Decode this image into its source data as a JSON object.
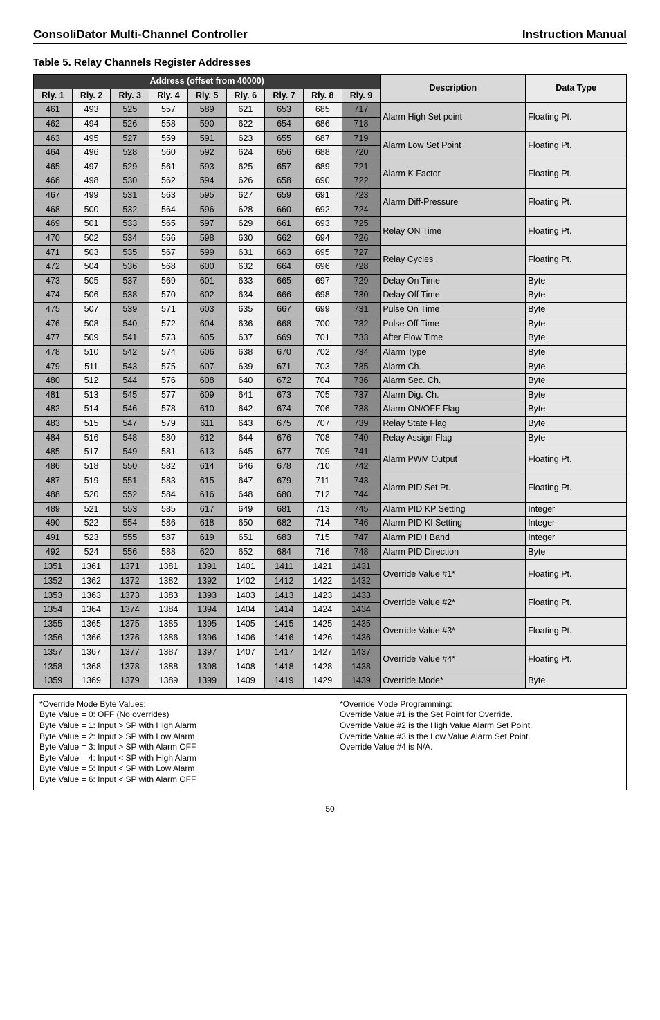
{
  "header": {
    "left": "ConsoliDator Multi-Channel Controller",
    "right": "Instruction Manual"
  },
  "table_title": "Table 5. Relay Channels Register Addresses",
  "address_header": "Address (offset from 40000)",
  "col_headers": [
    "Rly. 1",
    "Rly. 2",
    "Rly. 3",
    "Rly. 4",
    "Rly. 5",
    "Rly. 6",
    "Rly. 7",
    "Rly. 8",
    "Rly. 9",
    "Description",
    "Data Type"
  ],
  "col_styling": {
    "rly_fill_pattern": [
      "odd-col",
      "even-col",
      "odd-col",
      "even-col",
      "odd-col",
      "even-col",
      "odd-col",
      "even-col",
      "rly9-col"
    ],
    "desc_class": "desc-cell",
    "dtype_class": "dtype-cell",
    "address_header_bg": "#3b3b3b",
    "address_header_fg": "#ffffff",
    "th_bg": "#d9d9d9",
    "odd_col_bg": "#b7b7b7",
    "even_col_bg": "#f0f0f0",
    "rly9_bg": "#8a8a8a",
    "desc_bg": "#d2d2d2",
    "dtype_bg": "#e6e6e6",
    "border_color": "#000000",
    "font_size_pt": 9
  },
  "rows": [
    {
      "r": [
        461,
        493,
        525,
        557,
        589,
        621,
        653,
        685,
        717
      ],
      "desc": "Alarm High Set point",
      "dtype": "Floating Pt.",
      "span": 2
    },
    {
      "r": [
        462,
        494,
        526,
        558,
        590,
        622,
        654,
        686,
        718
      ]
    },
    {
      "r": [
        463,
        495,
        527,
        559,
        591,
        623,
        655,
        687,
        719
      ],
      "desc": "Alarm Low Set Point",
      "dtype": "Floating Pt.",
      "span": 2
    },
    {
      "r": [
        464,
        496,
        528,
        560,
        592,
        624,
        656,
        688,
        720
      ]
    },
    {
      "r": [
        465,
        497,
        529,
        561,
        593,
        625,
        657,
        689,
        721
      ],
      "desc": "Alarm K Factor",
      "dtype": "Floating Pt.",
      "span": 2
    },
    {
      "r": [
        466,
        498,
        530,
        562,
        594,
        626,
        658,
        690,
        722
      ]
    },
    {
      "r": [
        467,
        499,
        531,
        563,
        595,
        627,
        659,
        691,
        723
      ],
      "desc": "Alarm Diff-Pressure",
      "dtype": "Floating Pt.",
      "span": 2
    },
    {
      "r": [
        468,
        500,
        532,
        564,
        596,
        628,
        660,
        692,
        724
      ]
    },
    {
      "r": [
        469,
        501,
        533,
        565,
        597,
        629,
        661,
        693,
        725
      ],
      "desc": "Relay ON Time",
      "dtype": "Floating Pt.",
      "span": 2
    },
    {
      "r": [
        470,
        502,
        534,
        566,
        598,
        630,
        662,
        694,
        726
      ]
    },
    {
      "r": [
        471,
        503,
        535,
        567,
        599,
        631,
        663,
        695,
        727
      ],
      "desc": "Relay Cycles",
      "dtype": "Floating Pt.",
      "span": 2
    },
    {
      "r": [
        472,
        504,
        536,
        568,
        600,
        632,
        664,
        696,
        728
      ]
    },
    {
      "r": [
        473,
        505,
        537,
        569,
        601,
        633,
        665,
        697,
        729
      ],
      "desc": "Delay On Time",
      "dtype": "Byte",
      "span": 1
    },
    {
      "r": [
        474,
        506,
        538,
        570,
        602,
        634,
        666,
        698,
        730
      ],
      "desc": "Delay Off Time",
      "dtype": "Byte",
      "span": 1
    },
    {
      "r": [
        475,
        507,
        539,
        571,
        603,
        635,
        667,
        699,
        731
      ],
      "desc": "Pulse On Time",
      "dtype": "Byte",
      "span": 1
    },
    {
      "r": [
        476,
        508,
        540,
        572,
        604,
        636,
        668,
        700,
        732
      ],
      "desc": "Pulse Off Time",
      "dtype": "Byte",
      "span": 1
    },
    {
      "r": [
        477,
        509,
        541,
        573,
        605,
        637,
        669,
        701,
        733
      ],
      "desc": "After Flow Time",
      "dtype": "Byte",
      "span": 1
    },
    {
      "r": [
        478,
        510,
        542,
        574,
        606,
        638,
        670,
        702,
        734
      ],
      "desc": "Alarm Type",
      "dtype": "Byte",
      "span": 1
    },
    {
      "r": [
        479,
        511,
        543,
        575,
        607,
        639,
        671,
        703,
        735
      ],
      "desc": "Alarm Ch.",
      "dtype": "Byte",
      "span": 1
    },
    {
      "r": [
        480,
        512,
        544,
        576,
        608,
        640,
        672,
        704,
        736
      ],
      "desc": "Alarm Sec. Ch.",
      "dtype": "Byte",
      "span": 1
    },
    {
      "r": [
        481,
        513,
        545,
        577,
        609,
        641,
        673,
        705,
        737
      ],
      "desc": "Alarm Dig. Ch.",
      "dtype": "Byte",
      "span": 1
    },
    {
      "r": [
        482,
        514,
        546,
        578,
        610,
        642,
        674,
        706,
        738
      ],
      "desc": "Alarm ON/OFF Flag",
      "dtype": "Byte",
      "span": 1
    },
    {
      "r": [
        483,
        515,
        547,
        579,
        611,
        643,
        675,
        707,
        739
      ],
      "desc": "Relay State Flag",
      "dtype": "Byte",
      "span": 1
    },
    {
      "r": [
        484,
        516,
        548,
        580,
        612,
        644,
        676,
        708,
        740
      ],
      "desc": "Relay Assign Flag",
      "dtype": "Byte",
      "span": 1
    },
    {
      "r": [
        485,
        517,
        549,
        581,
        613,
        645,
        677,
        709,
        741
      ],
      "desc": "Alarm PWM Output",
      "dtype": "Floating Pt.",
      "span": 2
    },
    {
      "r": [
        486,
        518,
        550,
        582,
        614,
        646,
        678,
        710,
        742
      ]
    },
    {
      "r": [
        487,
        519,
        551,
        583,
        615,
        647,
        679,
        711,
        743
      ],
      "desc": "Alarm PID Set Pt.",
      "dtype": "Floating Pt.",
      "span": 2
    },
    {
      "r": [
        488,
        520,
        552,
        584,
        616,
        648,
        680,
        712,
        744
      ]
    },
    {
      "r": [
        489,
        521,
        553,
        585,
        617,
        649,
        681,
        713,
        745
      ],
      "desc": "Alarm PID KP Setting",
      "dtype": "Integer",
      "span": 1
    },
    {
      "r": [
        490,
        522,
        554,
        586,
        618,
        650,
        682,
        714,
        746
      ],
      "desc": "Alarm PID KI Setting",
      "dtype": "Integer",
      "span": 1
    },
    {
      "r": [
        491,
        523,
        555,
        587,
        619,
        651,
        683,
        715,
        747
      ],
      "desc": "Alarm PID I Band",
      "dtype": "Integer",
      "span": 1
    },
    {
      "r": [
        492,
        524,
        556,
        588,
        620,
        652,
        684,
        716,
        748
      ],
      "desc": "Alarm PID Direction",
      "dtype": "Byte",
      "span": 1
    },
    {
      "r": [
        1351,
        1361,
        1371,
        1381,
        1391,
        1401,
        1411,
        1421,
        1431
      ],
      "desc": "Override Value #1*",
      "dtype": "Floating Pt.",
      "span": 2,
      "section_break": true
    },
    {
      "r": [
        1352,
        1362,
        1372,
        1382,
        1392,
        1402,
        1412,
        1422,
        1432
      ]
    },
    {
      "r": [
        1353,
        1363,
        1373,
        1383,
        1393,
        1403,
        1413,
        1423,
        1433
      ],
      "desc": "Override Value #2*",
      "dtype": "Floating Pt.",
      "span": 2
    },
    {
      "r": [
        1354,
        1364,
        1374,
        1384,
        1394,
        1404,
        1414,
        1424,
        1434
      ]
    },
    {
      "r": [
        1355,
        1365,
        1375,
        1385,
        1395,
        1405,
        1415,
        1425,
        1435
      ],
      "desc": "Override Value #3*",
      "dtype": "Floating Pt.",
      "span": 2
    },
    {
      "r": [
        1356,
        1366,
        1376,
        1386,
        1396,
        1406,
        1416,
        1426,
        1436
      ]
    },
    {
      "r": [
        1357,
        1367,
        1377,
        1387,
        1397,
        1407,
        1417,
        1427,
        1437
      ],
      "desc": "Override Value #4*",
      "dtype": "Floating Pt.",
      "span": 2
    },
    {
      "r": [
        1358,
        1368,
        1378,
        1388,
        1398,
        1408,
        1418,
        1428,
        1438
      ]
    },
    {
      "r": [
        1359,
        1369,
        1379,
        1389,
        1399,
        1409,
        1419,
        1429,
        1439
      ],
      "desc": "Override Mode*",
      "dtype": "Byte",
      "span": 1
    }
  ],
  "footnotes": {
    "left": [
      "*Override Mode Byte Values:",
      "Byte Value = 0: OFF (No overrides)",
      "Byte Value = 1: Input > SP with High Alarm",
      "Byte Value = 2: Input > SP with Low Alarm",
      "Byte Value = 3: Input > SP with Alarm OFF",
      "Byte Value = 4: Input < SP with High Alarm",
      "Byte Value = 5: Input < SP with Low Alarm",
      "Byte Value = 6: Input < SP with Alarm OFF"
    ],
    "right": [
      "*Override Mode Programming:",
      "Override Value #1 is the Set Point for Override.",
      "Override Value #2 is the High Value Alarm Set Point.",
      "Override Value #3 is the Low Value Alarm Set Point.",
      "Override Value #4 is N/A."
    ]
  },
  "page_number": "50"
}
